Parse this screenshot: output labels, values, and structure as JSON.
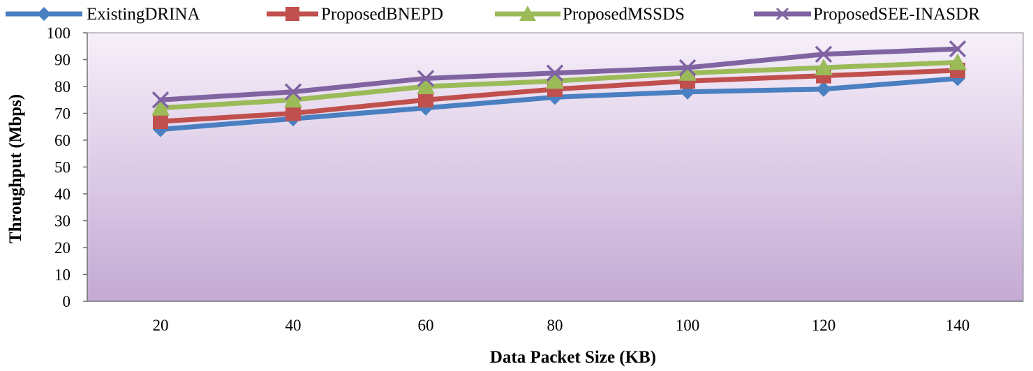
{
  "chart_data": {
    "type": "line",
    "title": "",
    "xlabel": "Data Packet Size (KB)",
    "ylabel": "Throughput (Mbps)",
    "categories": [
      "20",
      "40",
      "60",
      "80",
      "100",
      "120",
      "140"
    ],
    "ylim": [
      0,
      100
    ],
    "yticks": [
      "0",
      "10",
      "20",
      "30",
      "40",
      "50",
      "60",
      "70",
      "80",
      "90",
      "100"
    ],
    "legend_position": "top",
    "grid": false,
    "series": [
      {
        "name": "ExistingDRINA",
        "values": [
          64,
          68,
          72,
          76,
          78,
          79,
          83
        ],
        "color": "#4a7fc1",
        "marker": "diamond"
      },
      {
        "name": "ProposedBNEPD",
        "values": [
          67,
          70,
          75,
          79,
          82,
          84,
          86
        ],
        "color": "#c0504d",
        "marker": "square"
      },
      {
        "name": "ProposedMSSDS",
        "values": [
          72,
          75,
          80,
          82,
          85,
          87,
          89
        ],
        "color": "#9bbb59",
        "marker": "triangle"
      },
      {
        "name": "ProposedSEE-INASDR",
        "values": [
          75,
          78,
          83,
          85,
          87,
          92,
          94
        ],
        "color": "#8064a2",
        "marker": "x"
      }
    ]
  }
}
